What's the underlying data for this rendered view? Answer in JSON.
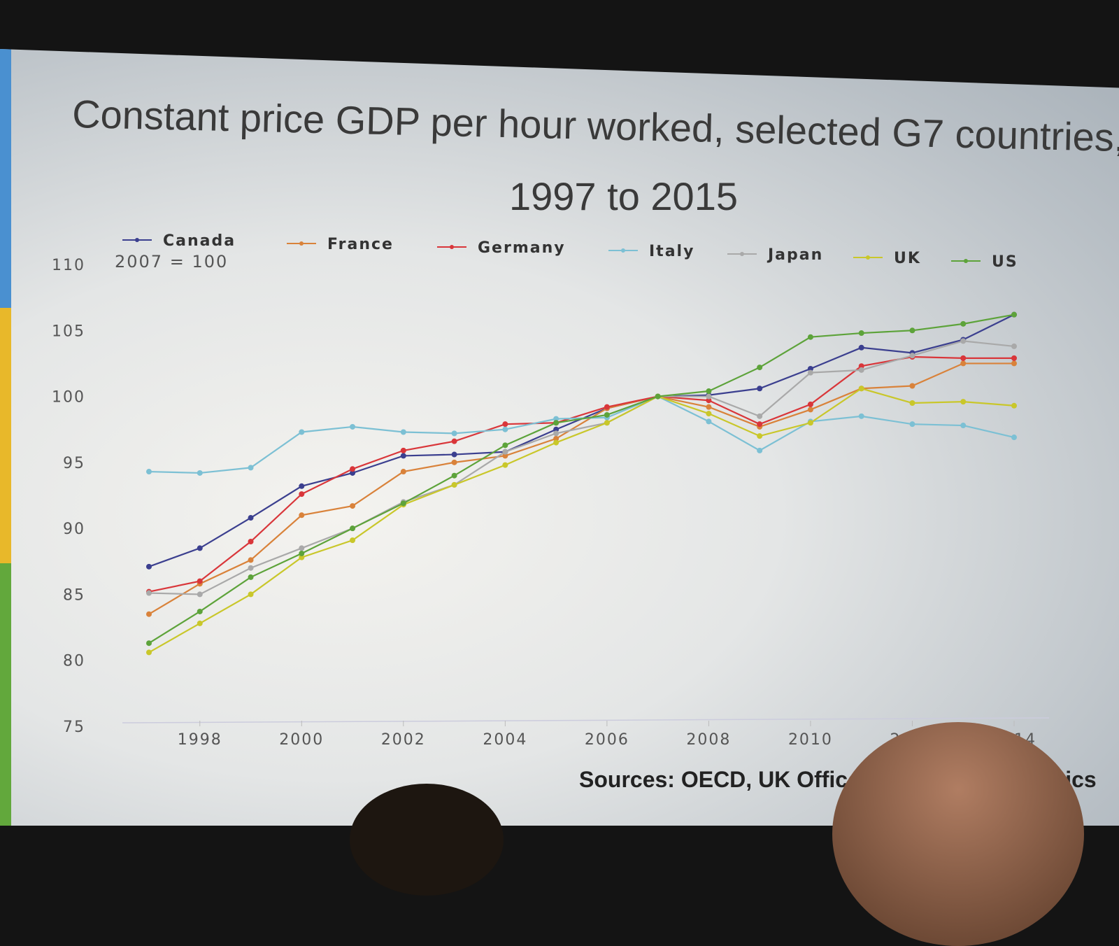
{
  "slide": {
    "title_line1": "Constant price GDP per hour worked, selected G7 countries,",
    "title_line2": "1997 to 2015",
    "sources": "Sources: OECD, UK Office for National Statistics"
  },
  "chart_data": {
    "type": "line",
    "title": "Constant price GDP per hour worked, selected G7 countries, 1997 to 2015",
    "subtitle": "2007 = 100",
    "xlabel": "",
    "ylabel": "",
    "x": [
      1997,
      1998,
      1999,
      2000,
      2001,
      2002,
      2003,
      2004,
      2005,
      2006,
      2007,
      2008,
      2009,
      2010,
      2011,
      2012,
      2013,
      2014
    ],
    "xticks": [
      "1998",
      "2000",
      "2002",
      "2004",
      "2006",
      "2008",
      "2010",
      "2012",
      "2014"
    ],
    "yticks": [
      "75",
      "80",
      "85",
      "90",
      "95",
      "100",
      "105",
      "110"
    ],
    "ylim": [
      75,
      110
    ],
    "grid": false,
    "legend_position": "top",
    "series": [
      {
        "name": "Canada",
        "color": "#3b3f8f",
        "values": [
          87.1,
          88.5,
          90.8,
          93.2,
          94.2,
          95.5,
          95.6,
          95.8,
          97.5,
          99.1,
          100,
          100.1,
          100.6,
          102.1,
          103.7,
          103.3,
          104.3,
          106.2
        ]
      },
      {
        "name": "France",
        "color": "#d9823a",
        "values": [
          83.5,
          85.8,
          87.6,
          91.0,
          91.7,
          94.3,
          95.0,
          95.5,
          96.8,
          99.1,
          100,
          99.2,
          97.7,
          99.0,
          100.6,
          100.8,
          102.5,
          102.5
        ]
      },
      {
        "name": "Germany",
        "color": "#d9363a",
        "values": [
          85.2,
          86.0,
          89.0,
          92.6,
          94.5,
          95.9,
          96.6,
          97.9,
          98.0,
          99.2,
          100,
          99.7,
          97.9,
          99.4,
          102.3,
          103.0,
          102.9,
          102.9
        ]
      },
      {
        "name": "Italy",
        "color": "#7cc0d4",
        "values": [
          94.3,
          94.2,
          94.6,
          97.3,
          97.7,
          97.3,
          97.2,
          97.5,
          98.3,
          98.4,
          100,
          98.1,
          95.9,
          98.1,
          98.5,
          97.9,
          97.8,
          96.9
        ]
      },
      {
        "name": "Japan",
        "color": "#a9a9a9",
        "values": [
          85.1,
          85.0,
          87.0,
          88.5,
          90.0,
          92.0,
          93.3,
          95.8,
          97.2,
          98.0,
          100,
          100.0,
          98.5,
          101.8,
          102.0,
          103.1,
          104.2,
          103.8
        ]
      },
      {
        "name": "UK",
        "color": "#c9c72a",
        "values": [
          80.6,
          82.8,
          85.0,
          87.8,
          89.1,
          91.8,
          93.3,
          94.8,
          96.5,
          98.0,
          100,
          98.7,
          97.0,
          98.0,
          100.6,
          99.5,
          99.6,
          99.3
        ]
      },
      {
        "name": "US",
        "color": "#5da33a",
        "values": [
          81.3,
          83.7,
          86.3,
          88.1,
          90.0,
          91.9,
          94.0,
          96.3,
          98.0,
          98.6,
          100,
          100.4,
          102.2,
          104.5,
          104.8,
          105.0,
          105.5,
          106.2
        ]
      }
    ]
  }
}
